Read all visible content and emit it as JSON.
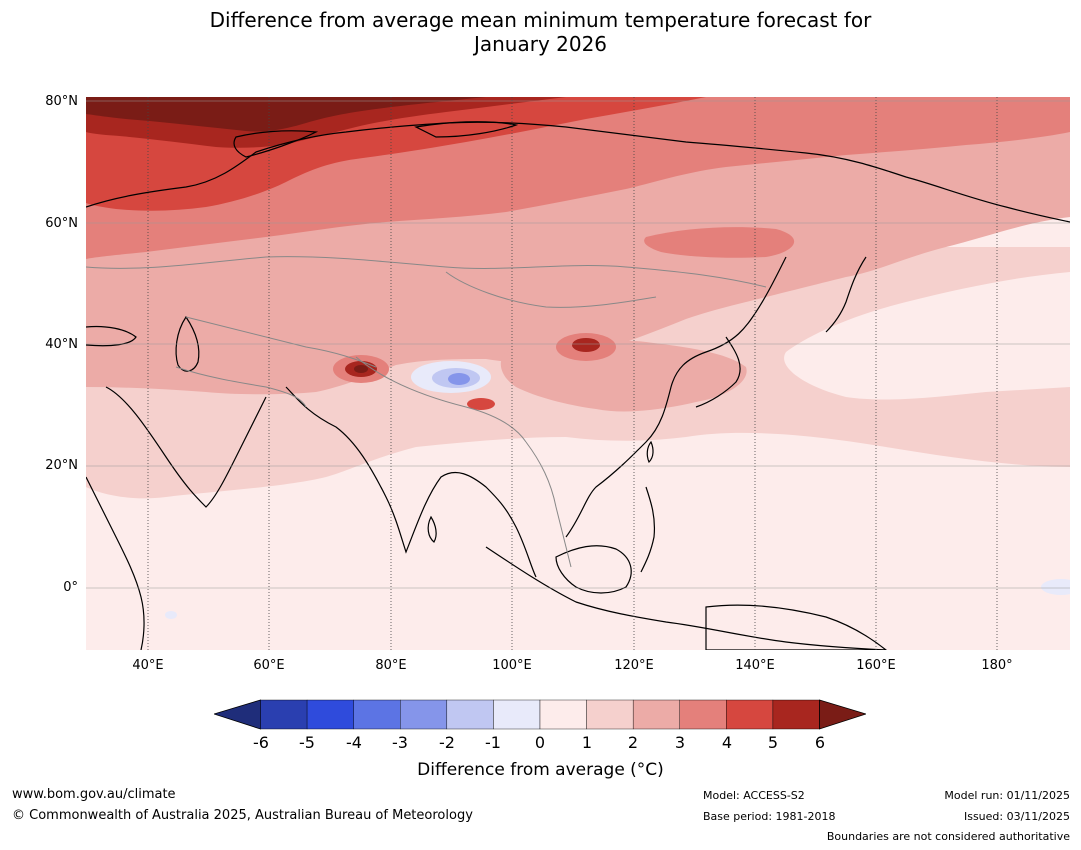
{
  "title_line1": "Difference from average mean minimum temperature forecast for",
  "title_line2": "January 2026",
  "lat_labels": [
    "80°N",
    "60°N",
    "40°N",
    "20°N",
    "0°"
  ],
  "lon_labels": [
    "40°E",
    "60°E",
    "80°E",
    "100°E",
    "120°E",
    "140°E",
    "160°E",
    "180°"
  ],
  "colorbar": {
    "ticks": [
      "-6",
      "-5",
      "-4",
      "-3",
      "-2",
      "-1",
      "0",
      "1",
      "2",
      "3",
      "4",
      "5",
      "6"
    ],
    "colors": [
      "#1f2d7a",
      "#2a3fb0",
      "#2f4bdc",
      "#5c74e4",
      "#8595ea",
      "#c0c7f2",
      "#e8eafa",
      "#fdeceb",
      "#f5d0cd",
      "#ecaba7",
      "#e4807b",
      "#d6473f",
      "#a8261f",
      "#7a1c16"
    ],
    "label": "Difference from average (°C)"
  },
  "footer": {
    "website": "www.bom.gov.au/climate",
    "copyright": "© Commonwealth of Australia 2025, Australian Bureau of Meteorology",
    "model": "Model: ACCESS-S2",
    "base_period": "Base period: 1981-2018",
    "model_run": "Model run: 01/11/2025",
    "issued": "Issued: 03/11/2025",
    "disclaimer": "Boundaries are not considered authoritative"
  }
}
